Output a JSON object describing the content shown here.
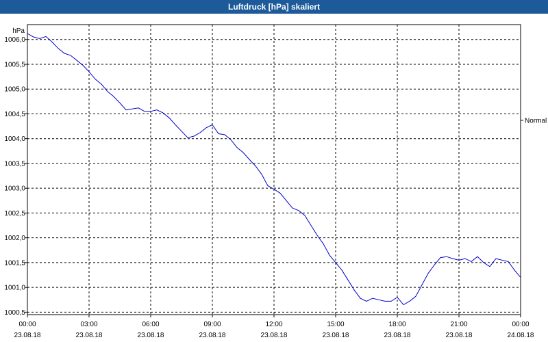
{
  "window": {
    "title": "Luftdruck [hPa] skaliert"
  },
  "chart_data": {
    "type": "line",
    "title": "Luftdruck [hPa] skaliert",
    "ylabel": "hPa",
    "ylim": [
      1000.45,
      1006.3
    ],
    "xlim_hours": [
      0,
      24
    ],
    "grid": true,
    "y_ticks": [
      "1006,0",
      "1005,5",
      "1005,0",
      "1004,5",
      "1004,0",
      "1003,5",
      "1003,0",
      "1002,5",
      "1002,0",
      "1001,5",
      "1001,0",
      "1000,5"
    ],
    "y_tick_values": [
      1006.0,
      1005.5,
      1005.0,
      1004.5,
      1004.0,
      1003.5,
      1003.0,
      1002.5,
      1002.0,
      1001.5,
      1001.0,
      1000.5
    ],
    "x_ticks": [
      {
        "time": "00:00",
        "date": "23.08.18",
        "hour": 0
      },
      {
        "time": "03:00",
        "date": "23.08.18",
        "hour": 3
      },
      {
        "time": "06:00",
        "date": "23.08.18",
        "hour": 6
      },
      {
        "time": "09:00",
        "date": "23.08.18",
        "hour": 9
      },
      {
        "time": "12:00",
        "date": "23.08.18",
        "hour": 12
      },
      {
        "time": "15:00",
        "date": "23.08.18",
        "hour": 15
      },
      {
        "time": "18:00",
        "date": "23.08.18",
        "hour": 18
      },
      {
        "time": "21:00",
        "date": "23.08.18",
        "hour": 21
      },
      {
        "time": "00:00",
        "date": "24.08.18",
        "hour": 24
      }
    ],
    "right_label": {
      "text": "Normal",
      "value": 1004.37
    },
    "series": [
      {
        "name": "Luftdruck",
        "color": "#0000cc",
        "x": [
          0,
          0.3,
          0.6,
          0.9,
          1.2,
          1.5,
          1.8,
          2.1,
          2.4,
          2.7,
          3.0,
          3.3,
          3.6,
          3.9,
          4.2,
          4.5,
          4.8,
          5.1,
          5.4,
          5.7,
          6.0,
          6.3,
          6.6,
          6.9,
          7.2,
          7.5,
          7.8,
          8.1,
          8.4,
          8.7,
          9.0,
          9.3,
          9.6,
          9.9,
          10.2,
          10.5,
          10.8,
          11.1,
          11.4,
          11.7,
          12.0,
          12.3,
          12.6,
          12.9,
          13.2,
          13.5,
          13.8,
          14.1,
          14.4,
          14.7,
          15.0,
          15.3,
          15.6,
          15.9,
          16.2,
          16.5,
          16.8,
          17.1,
          17.4,
          17.7,
          18.0,
          18.3,
          18.6,
          18.9,
          19.2,
          19.5,
          19.8,
          20.1,
          20.4,
          20.7,
          21.0,
          21.3,
          21.6,
          21.9,
          22.2,
          22.5,
          22.8,
          23.1,
          23.4,
          23.7,
          24.0
        ],
        "values": [
          1006.12,
          1006.05,
          1006.02,
          1006.06,
          1005.95,
          1005.82,
          1005.72,
          1005.68,
          1005.58,
          1005.48,
          1005.35,
          1005.2,
          1005.1,
          1004.95,
          1004.85,
          1004.72,
          1004.58,
          1004.6,
          1004.62,
          1004.55,
          1004.55,
          1004.58,
          1004.52,
          1004.42,
          1004.28,
          1004.15,
          1004.02,
          1004.05,
          1004.12,
          1004.22,
          1004.28,
          1004.1,
          1004.08,
          1003.98,
          1003.82,
          1003.72,
          1003.58,
          1003.45,
          1003.28,
          1003.05,
          1002.98,
          1002.9,
          1002.75,
          1002.6,
          1002.55,
          1002.45,
          1002.25,
          1002.05,
          1001.88,
          1001.65,
          1001.5,
          1001.35,
          1001.15,
          1000.95,
          1000.78,
          1000.72,
          1000.78,
          1000.75,
          1000.72,
          1000.72,
          1000.8,
          1000.65,
          1000.72,
          1000.82,
          1001.05,
          1001.28,
          1001.45,
          1001.6,
          1001.62,
          1001.58,
          1001.55,
          1001.58,
          1001.52,
          1001.62,
          1001.5,
          1001.42,
          1001.58,
          1001.55,
          1001.52,
          1001.35,
          1001.2
        ]
      }
    ]
  }
}
